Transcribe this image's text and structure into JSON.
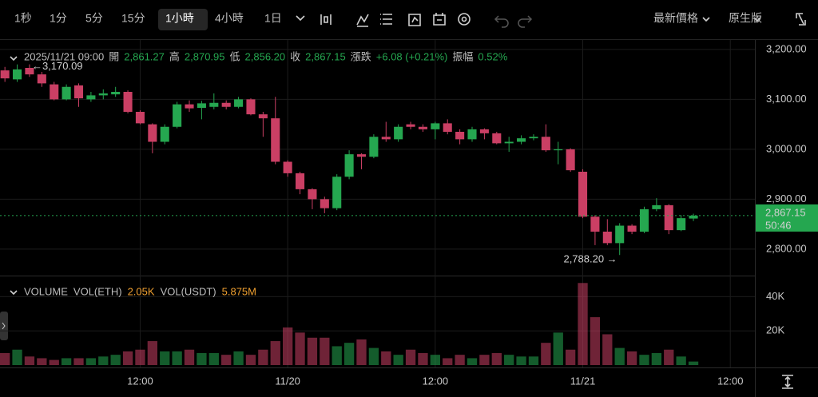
{
  "toolbar": {
    "intervals": [
      "1秒",
      "1分",
      "5分",
      "15分",
      "1小時",
      "4小時",
      "1日"
    ],
    "selected": 4,
    "price_mode": "最新價格",
    "view_mode": "原生版"
  },
  "info": {
    "time": "2025/11/21 09:00",
    "open_label": "開",
    "open": "2,861.27",
    "high_label": "高",
    "high": "2,870.95",
    "low_label": "低",
    "low": "2,856.20",
    "close_label": "收",
    "close": "2,867.15",
    "change_label": "漲跌",
    "change": "+6.08 (+0.21%)",
    "amplitude_label": "振幅",
    "amplitude": "0.52%"
  },
  "volume_legend": {
    "title": "VOLUME",
    "eth_label": "VOL(ETH)",
    "eth": "2.05K",
    "usdt_label": "VOL(USDT)",
    "usdt": "5.875M"
  },
  "chart_data": {
    "type": "candlestick",
    "up_color": "#25a750",
    "down_color": "#ca3f64",
    "open": [
      3158,
      3140,
      3163,
      3150,
      3130,
      3100,
      3128,
      3100,
      3108,
      3110,
      3115,
      3075,
      3050,
      3015,
      3045,
      3090,
      3083,
      3085,
      3093,
      3085,
      3100,
      3070,
      3062,
      2975,
      2952,
      2920,
      2900,
      2882,
      2945,
      2990,
      2985,
      3025,
      3020,
      3050,
      3045,
      3040,
      3052,
      3035,
      3020,
      3040,
      3032,
      3012,
      3015,
      3022,
      3025,
      2998,
      3000,
      2955,
      2865,
      2835,
      2812,
      2847,
      2835,
      2880,
      2888,
      2838,
      2861.27
    ],
    "high": [
      3165,
      3170,
      3170.09,
      3155,
      3135,
      3130,
      3132,
      3115,
      3120,
      3125,
      3118,
      3078,
      3052,
      3050,
      3095,
      3098,
      3097,
      3112,
      3098,
      3105,
      3102,
      3075,
      3105,
      2978,
      2955,
      2922,
      2905,
      2950,
      2998,
      2992,
      3030,
      3055,
      3050,
      3055,
      3050,
      3055,
      3060,
      3040,
      3045,
      3042,
      3035,
      3025,
      3028,
      3030,
      3050,
      3015,
      3002,
      2960,
      2868,
      2860,
      2852,
      2850,
      2885,
      2902,
      2890,
      2868,
      2870.95
    ],
    "low": [
      3135,
      3135,
      3145,
      3125,
      3098,
      3098,
      3085,
      3095,
      3100,
      3105,
      3072,
      3050,
      2992,
      3010,
      3042,
      3075,
      3060,
      3080,
      3080,
      3082,
      3068,
      3025,
      2970,
      2945,
      2910,
      2880,
      2872,
      2878,
      2940,
      2960,
      2982,
      3015,
      3015,
      3040,
      3035,
      3020,
      3030,
      3010,
      3015,
      3020,
      3010,
      2995,
      3010,
      3018,
      2995,
      2970,
      2955,
      2862,
      2808,
      2808,
      2788.2,
      2830,
      2832,
      2876,
      2830,
      2836,
      2856.2
    ],
    "close": [
      3142,
      3160,
      3150,
      3132,
      3100,
      3125,
      3102,
      3108,
      3112,
      3115,
      3075,
      3052,
      3015,
      3045,
      3090,
      3082,
      3092,
      3093,
      3085,
      3100,
      3070,
      3062,
      2975,
      2952,
      2920,
      2900,
      2882,
      2945,
      2990,
      2985,
      3025,
      3020,
      3045,
      3045,
      3040,
      3052,
      3035,
      3020,
      3040,
      3032,
      3012,
      3015,
      3022,
      3025,
      2998,
      3000,
      2958,
      2865,
      2835,
      2812,
      2847,
      2835,
      2880,
      2888,
      2838,
      2862,
      2867.15
    ],
    "volume": [
      7000,
      9000,
      5000,
      4000,
      3000,
      4000,
      4000,
      4000,
      5000,
      6000,
      8000,
      9000,
      14000,
      8000,
      8000,
      9000,
      7000,
      7000,
      6000,
      8000,
      6000,
      9000,
      14000,
      22000,
      19000,
      16000,
      16000,
      11000,
      13000,
      15000,
      10000,
      8000,
      6000,
      9000,
      7000,
      6000,
      4000,
      6000,
      4000,
      6000,
      7000,
      6000,
      5000,
      5000,
      13000,
      19000,
      9000,
      48000,
      28000,
      18000,
      10000,
      8000,
      6000,
      7000,
      9000,
      5000,
      2050
    ],
    "xlim": [
      -0.4,
      61
    ],
    "xticks": [
      {
        "value": 11,
        "label": "12:00"
      },
      {
        "value": 23,
        "label": "11/20"
      },
      {
        "value": 35,
        "label": "12:00"
      },
      {
        "value": 47,
        "label": "11/21"
      },
      {
        "value": 59,
        "label": "12:00"
      }
    ],
    "ylim": [
      2747,
      3219
    ],
    "yticks": [
      {
        "value": 3200,
        "label": "3,200.00"
      },
      {
        "value": 3100,
        "label": "3,100.00"
      },
      {
        "value": 3000,
        "label": "3,000.00"
      },
      {
        "value": 2900,
        "label": "2,900.00"
      },
      {
        "value": 2800,
        "label": "2,800.00"
      }
    ],
    "vlim": [
      0,
      50000
    ],
    "vticks": [
      {
        "value": 40000,
        "label": "40K"
      },
      {
        "value": 20000,
        "label": "20K"
      }
    ],
    "last_price": {
      "value": 2867.15,
      "label": "2,867.15",
      "countdown": "50:46"
    },
    "annotations": [
      {
        "index": 2,
        "value": 3170.09,
        "label": "←3,170.09"
      },
      {
        "index": 50,
        "value": 2788.2,
        "label": "2,788.20 →"
      }
    ],
    "grid": true
  }
}
